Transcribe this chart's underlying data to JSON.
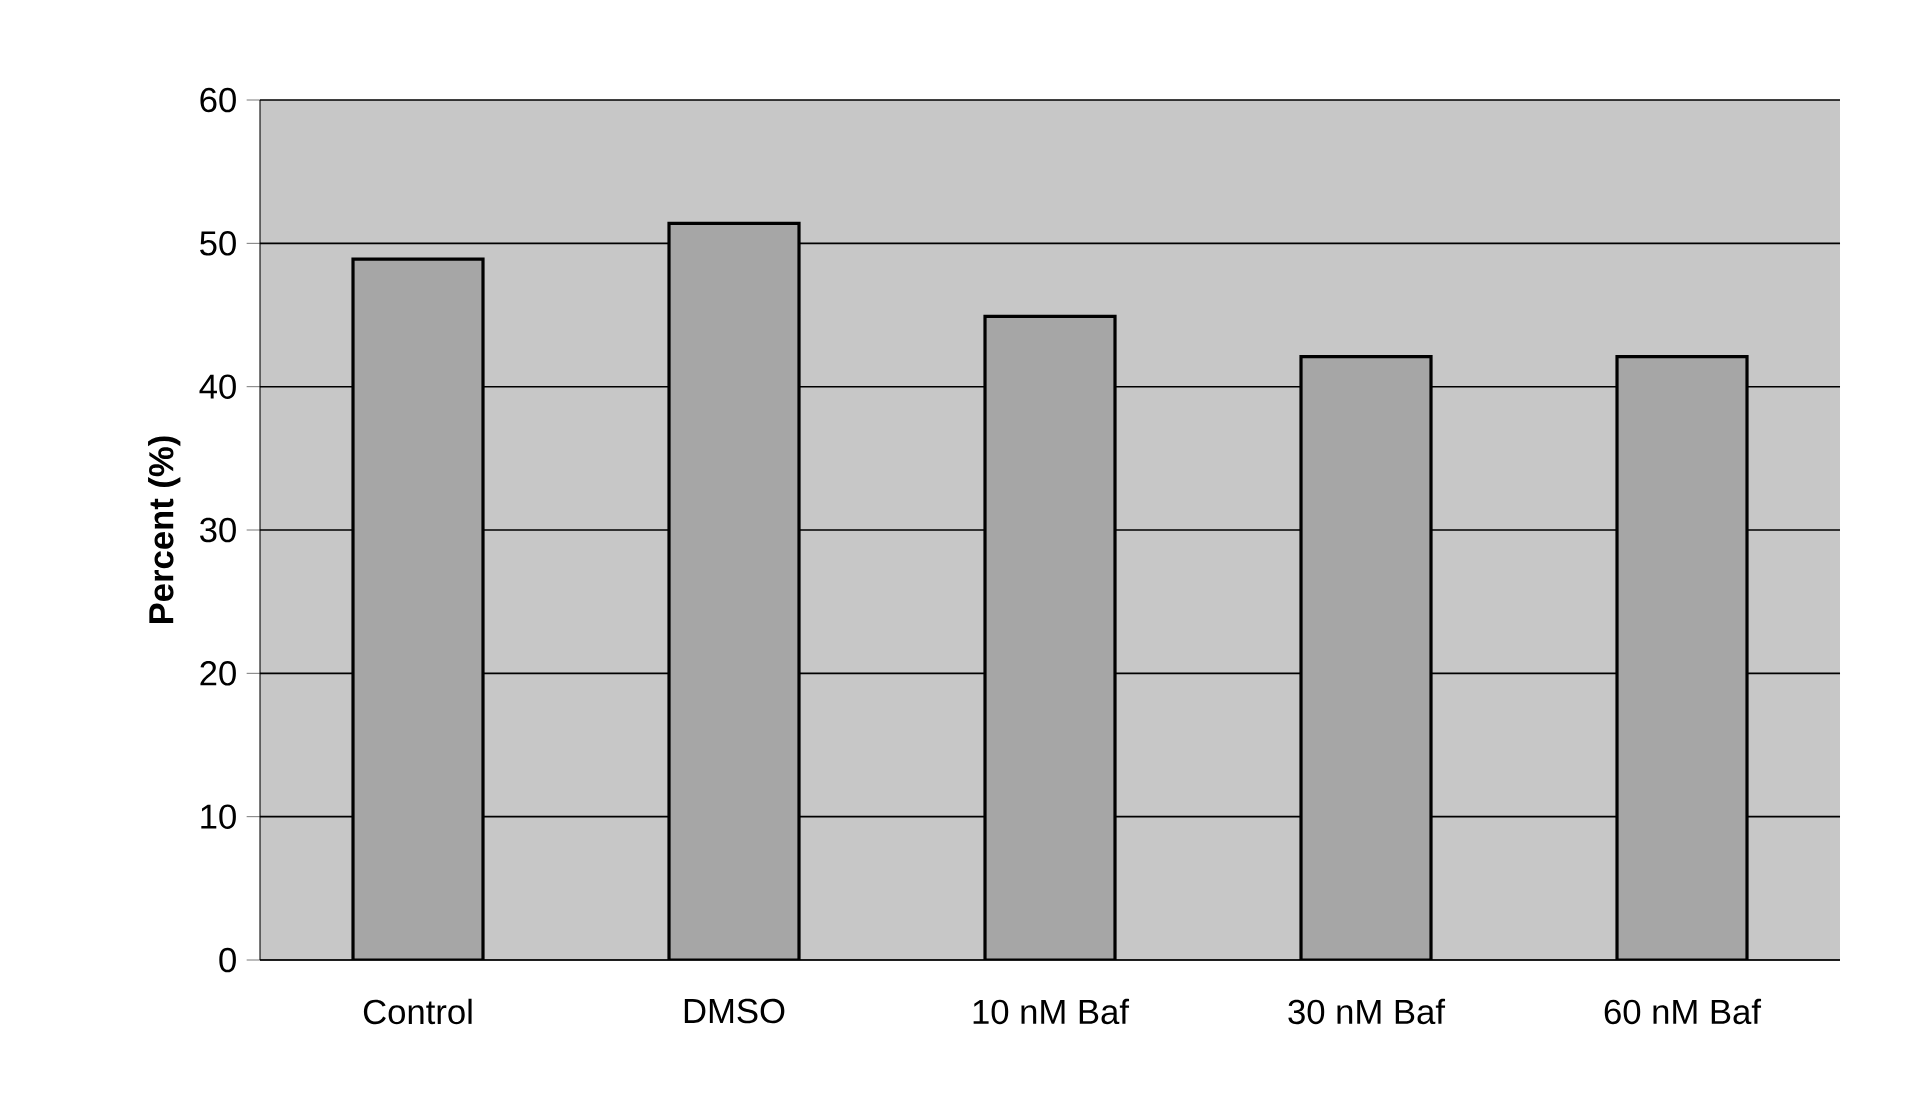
{
  "chart_data": {
    "type": "bar",
    "ylabel": "Percent (%)",
    "categories": [
      "Control",
      "DMSO",
      "10 nM Baf",
      "30 nM Baf",
      "60 nM Baf"
    ],
    "values": [
      48.9,
      51.4,
      44.9,
      42.1,
      42.1
    ],
    "color": "#a6a6a6",
    "ylim": [
      0,
      60
    ],
    "yticks": [
      0,
      10,
      20,
      30,
      40,
      50,
      60
    ],
    "grid": "y"
  }
}
